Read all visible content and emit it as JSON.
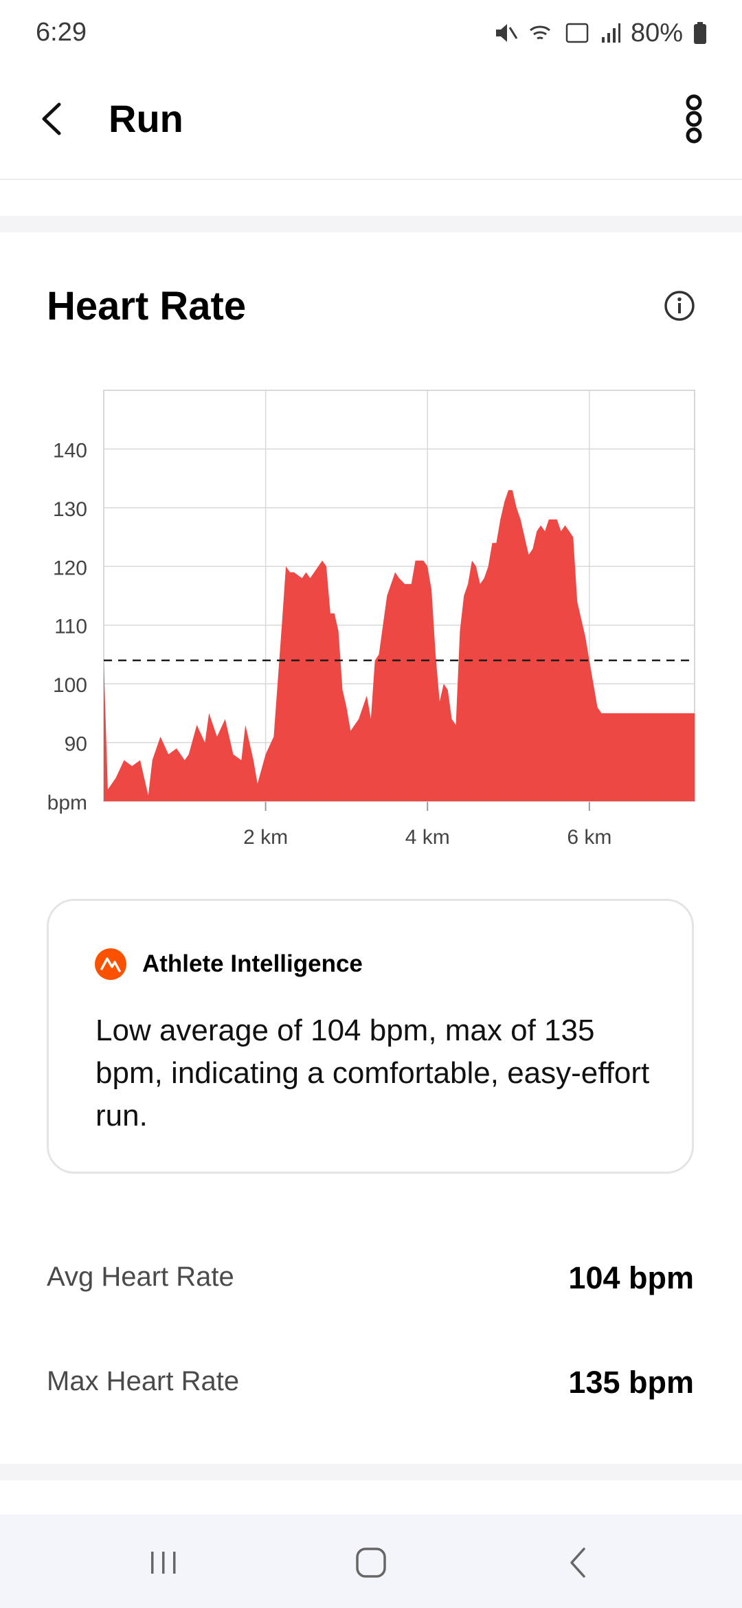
{
  "status_bar": {
    "time": "6:29",
    "battery": "80%"
  },
  "app_bar": {
    "title": "Run"
  },
  "section": {
    "title": "Heart Rate"
  },
  "chart_data": {
    "type": "area",
    "xlabel": "",
    "ylabel": "bpm",
    "x_tick_labels": [
      "2 km",
      "4 km",
      "6 km"
    ],
    "x_ticks": [
      2,
      4,
      6
    ],
    "y_tick_labels": [
      "140",
      "130",
      "120",
      "110",
      "100",
      "90"
    ],
    "y_ticks": [
      140,
      130,
      120,
      110,
      100,
      90
    ],
    "xlim": [
      0,
      7.3
    ],
    "ylim": [
      80,
      150
    ],
    "grid": true,
    "average_line": 104,
    "colors": {
      "fill": "#ee4845",
      "grid": "#d8d8d8",
      "average": "#1a1a1a"
    },
    "series": [
      {
        "x": [
          0,
          0.05,
          0.15,
          0.25,
          0.35,
          0.45,
          0.55,
          0.6,
          0.7,
          0.8,
          0.9,
          1.0,
          1.05,
          1.15,
          1.25,
          1.3,
          1.4,
          1.5,
          1.6,
          1.7,
          1.75,
          1.85,
          1.9,
          2.0,
          2.1,
          2.2,
          2.25,
          2.3,
          2.35,
          2.45,
          2.5,
          2.55,
          2.65,
          2.7,
          2.75,
          2.8,
          2.85,
          2.9,
          2.95,
          3.0,
          3.05,
          3.15,
          3.25,
          3.3,
          3.35,
          3.4,
          3.5,
          3.55,
          3.6,
          3.65,
          3.72,
          3.8,
          3.85,
          3.9,
          3.95,
          4.0,
          4.05,
          4.1,
          4.15,
          4.2,
          4.25,
          4.3,
          4.35,
          4.4,
          4.45,
          4.5,
          4.55,
          4.6,
          4.65,
          4.7,
          4.75,
          4.8,
          4.85,
          4.9,
          4.95,
          5.0,
          5.05,
          5.1,
          5.15,
          5.2,
          5.25,
          5.3,
          5.35,
          5.4,
          5.45,
          5.5,
          5.55,
          5.6,
          5.65,
          5.7,
          5.75,
          5.8,
          5.85,
          5.9,
          5.95,
          6.0,
          6.05,
          6.1,
          6.15,
          6.2,
          6.25,
          6.3,
          6.35,
          6.4,
          6.45,
          6.5,
          6.55,
          6.6,
          6.65,
          6.7,
          6.75,
          6.8,
          6.85,
          6.9,
          6.95,
          7.0,
          7.05,
          7.1,
          7.15,
          7.2,
          7.25,
          7.3
        ],
        "values": [
          104,
          82,
          84,
          87,
          86,
          87,
          81,
          87,
          91,
          88,
          89,
          87,
          88,
          93,
          90,
          95,
          91,
          94,
          88,
          87,
          93,
          87,
          83,
          88,
          91,
          110,
          120,
          119,
          119,
          118,
          119,
          118,
          120,
          121,
          120,
          112,
          112,
          109,
          99,
          96,
          92,
          94,
          98,
          94,
          104,
          105,
          115,
          117,
          119,
          118,
          117,
          117,
          121,
          121,
          121,
          120,
          116,
          105,
          97,
          100,
          99,
          94,
          93,
          109,
          115,
          117,
          121,
          120,
          117,
          118,
          120,
          124,
          124,
          128,
          131,
          133,
          133,
          130,
          128,
          125,
          122,
          123,
          126,
          127,
          126,
          128,
          128,
          128,
          126,
          127,
          126,
          125,
          114,
          111,
          108,
          104,
          100,
          96,
          95,
          95,
          95,
          95,
          95,
          95,
          95,
          95,
          95,
          95,
          95,
          95,
          95,
          95,
          95,
          95,
          95,
          95,
          95,
          95,
          95,
          95,
          95,
          95
        ]
      }
    ]
  },
  "insight": {
    "heading": "Athlete Intelligence",
    "text": "Low average of 104 bpm, max of 135 bpm, indicating a comfortable, easy-effort run."
  },
  "stats": [
    {
      "label": "Avg Heart Rate",
      "value": "104 bpm"
    },
    {
      "label": "Max Heart Rate",
      "value": "135 bpm"
    }
  ],
  "icons": {
    "back": "back-arrow-icon",
    "more": "more-vertical-icon",
    "info": "info-icon",
    "logo": "strava-logo-icon"
  }
}
